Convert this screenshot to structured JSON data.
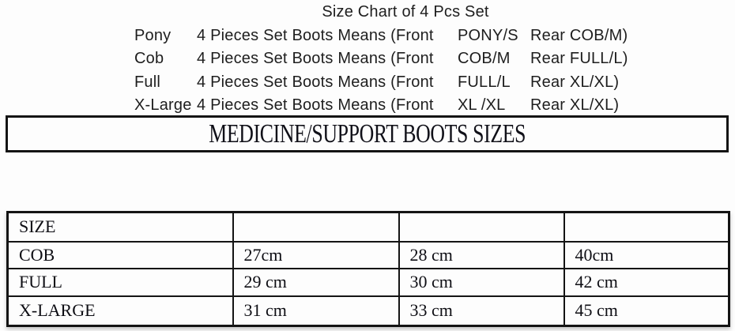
{
  "page": {
    "title": "Size Chart of 4 Pcs Set"
  },
  "size_list": {
    "rows": [
      {
        "label": "Pony",
        "description": "4 Pieces Set Boots Means (Front",
        "front": "PONY/S",
        "rear": "Rear COB/M)"
      },
      {
        "label": "Cob",
        "description": "4 Pieces Set Boots Means (Front",
        "front": "COB/M",
        "rear": "Rear FULL/L)"
      },
      {
        "label": "Full",
        "description": "4 Pieces Set Boots Means (Front",
        "front": "FULL/L",
        "rear": "Rear XL/XL)"
      },
      {
        "label": "X-Large",
        "description": "4 Pieces Set Boots Means (Front",
        "front": "XL /XL",
        "rear": "Rear XL/XL)"
      }
    ]
  },
  "banner": {
    "title": "MEDICINE/SUPPORT BOOTS SIZES"
  },
  "size_table": {
    "header": [
      "SIZE",
      "",
      "",
      ""
    ],
    "rows": [
      [
        "COB",
        "27cm",
        "28 cm",
        "40cm"
      ],
      [
        "FULL",
        "29 cm",
        "30 cm",
        "42 cm"
      ],
      [
        "X-LARGE",
        "31 cm",
        "33 cm",
        "45 cm"
      ]
    ]
  },
  "colors": {
    "background": "#fdfdfd",
    "text": "#1e1e1e",
    "border": "#141414"
  }
}
